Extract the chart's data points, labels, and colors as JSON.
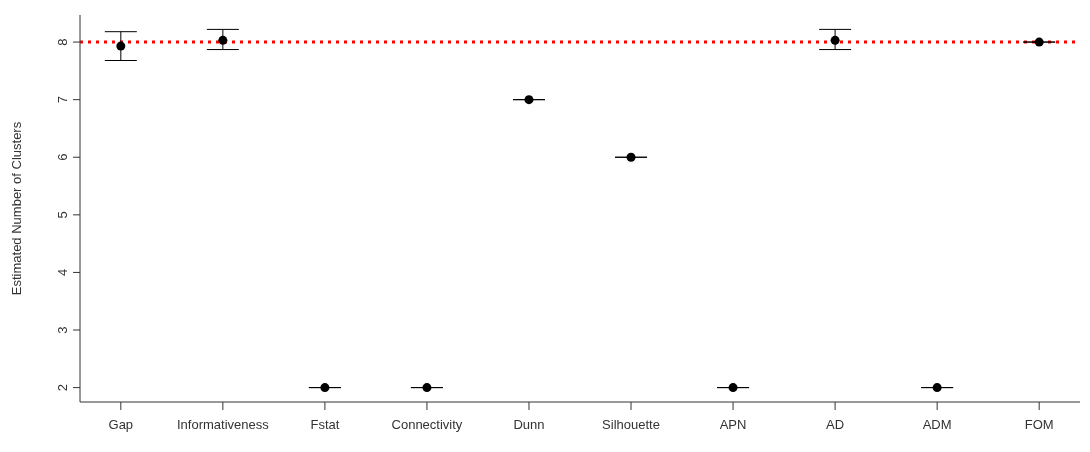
{
  "chart_data": {
    "type": "scatter",
    "ylabel": "Estimated Number of Clusters",
    "categories": [
      "Gap",
      "Informativeness",
      "Fstat",
      "Connectivity",
      "Dunn",
      "Silhouette",
      "APN",
      "AD",
      "ADM",
      "FOM"
    ],
    "values": [
      7.93,
      8.03,
      2,
      2,
      7,
      6,
      2,
      8.03,
      2,
      8
    ],
    "errors": [
      [
        7.68,
        8.18
      ],
      [
        7.87,
        8.22
      ],
      0,
      0,
      0,
      0,
      0,
      [
        7.87,
        8.22
      ],
      0,
      0
    ],
    "color": "#000000",
    "marker": "circle",
    "ylim": [
      1.75,
      8.47
    ],
    "yticks": [
      2,
      3,
      4,
      5,
      6,
      7,
      8
    ],
    "grid": false,
    "legend": false,
    "ref_lines": [
      {
        "axis": "y",
        "value": 8,
        "color": "#ff0000",
        "line_style": "dotted"
      }
    ]
  }
}
